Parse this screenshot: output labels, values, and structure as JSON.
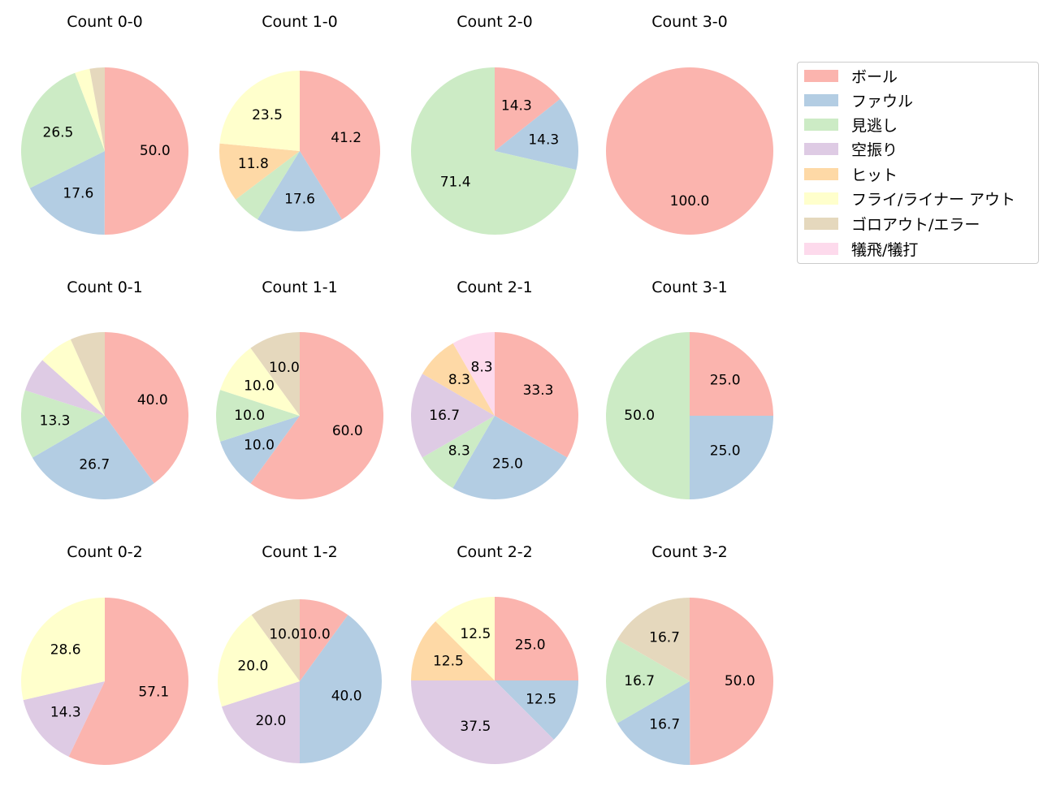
{
  "legend": {
    "items": [
      {
        "label": "ボール",
        "color": "#fbb4ae"
      },
      {
        "label": "ファウル",
        "color": "#b3cde3"
      },
      {
        "label": "見逃し",
        "color": "#ccebc5"
      },
      {
        "label": "空振り",
        "color": "#decbe4"
      },
      {
        "label": "ヒット",
        "color": "#fed9a6"
      },
      {
        "label": "フライ/ライナー アウト",
        "color": "#ffffcc"
      },
      {
        "label": "ゴロアウト/エラー",
        "color": "#e5d8bd"
      },
      {
        "label": "犠飛/犠打",
        "color": "#fddaec"
      }
    ]
  },
  "chart_data": [
    {
      "type": "pie",
      "title": "Count 0-0",
      "categories": [
        "ボール",
        "ファウル",
        "見逃し",
        "フライ/ライナー アウト",
        "ゴロアウト/エラー"
      ],
      "values": [
        50.0,
        17.6,
        26.5,
        2.9,
        2.9
      ],
      "labels": [
        "50.0",
        "17.6",
        "26.5",
        "",
        ""
      ]
    },
    {
      "type": "pie",
      "title": "Count 1-0",
      "categories": [
        "ボール",
        "ファウル",
        "見逃し",
        "ヒット",
        "フライ/ライナー アウト"
      ],
      "values": [
        41.2,
        17.6,
        5.9,
        11.8,
        23.5
      ],
      "labels": [
        "41.2",
        "17.6",
        "",
        "11.8",
        "23.5"
      ]
    },
    {
      "type": "pie",
      "title": "Count 2-0",
      "categories": [
        "ボール",
        "ファウル",
        "見逃し"
      ],
      "values": [
        14.3,
        14.3,
        71.4
      ],
      "labels": [
        "14.3",
        "14.3",
        "71.4"
      ]
    },
    {
      "type": "pie",
      "title": "Count 3-0",
      "categories": [
        "ボール"
      ],
      "values": [
        100.0
      ],
      "labels": [
        "100.0"
      ]
    },
    {
      "type": "pie",
      "title": "Count 0-1",
      "categories": [
        "ボール",
        "ファウル",
        "見逃し",
        "空振り",
        "フライ/ライナー アウト",
        "ゴロアウト/エラー"
      ],
      "values": [
        40.0,
        26.7,
        13.3,
        6.7,
        6.7,
        6.7
      ],
      "labels": [
        "40.0",
        "26.7",
        "13.3",
        "",
        "",
        ""
      ]
    },
    {
      "type": "pie",
      "title": "Count 1-1",
      "categories": [
        "ボール",
        "ファウル",
        "見逃し",
        "フライ/ライナー アウト",
        "ゴロアウト/エラー"
      ],
      "values": [
        60.0,
        10.0,
        10.0,
        10.0,
        10.0
      ],
      "labels": [
        "60.0",
        "10.0",
        "10.0",
        "10.0",
        "10.0"
      ]
    },
    {
      "type": "pie",
      "title": "Count 2-1",
      "categories": [
        "ボール",
        "ファウル",
        "見逃し",
        "空振り",
        "ヒット",
        "犠飛/犠打"
      ],
      "values": [
        33.3,
        25.0,
        8.3,
        16.7,
        8.3,
        8.3
      ],
      "labels": [
        "33.3",
        "25.0",
        "8.3",
        "16.7",
        "8.3",
        "8.3"
      ]
    },
    {
      "type": "pie",
      "title": "Count 3-1",
      "categories": [
        "ボール",
        "ファウル",
        "見逃し"
      ],
      "values": [
        25.0,
        25.0,
        50.0
      ],
      "labels": [
        "25.0",
        "25.0",
        "50.0"
      ]
    },
    {
      "type": "pie",
      "title": "Count 0-2",
      "categories": [
        "ボール",
        "空振り",
        "フライ/ライナー アウト"
      ],
      "values": [
        57.1,
        14.3,
        28.6
      ],
      "labels": [
        "57.1",
        "14.3",
        "28.6"
      ]
    },
    {
      "type": "pie",
      "title": "Count 1-2",
      "categories": [
        "ボール",
        "ファウル",
        "空振り",
        "フライ/ライナー アウト",
        "ゴロアウト/エラー"
      ],
      "values": [
        10.0,
        40.0,
        20.0,
        20.0,
        10.0
      ],
      "labels": [
        "10.0",
        "40.0",
        "20.0",
        "20.0",
        "10.0"
      ]
    },
    {
      "type": "pie",
      "title": "Count 2-2",
      "categories": [
        "ボール",
        "ファウル",
        "空振り",
        "ヒット",
        "フライ/ライナー アウト"
      ],
      "values": [
        25.0,
        12.5,
        37.5,
        12.5,
        12.5
      ],
      "labels": [
        "25.0",
        "12.5",
        "37.5",
        "12.5",
        "12.5"
      ]
    },
    {
      "type": "pie",
      "title": "Count 3-2",
      "categories": [
        "ボール",
        "ファウル",
        "見逃し",
        "ゴロアウト/エラー"
      ],
      "values": [
        50.0,
        16.7,
        16.7,
        16.7
      ],
      "labels": [
        "50.0",
        "16.7",
        "16.7",
        "16.7"
      ]
    }
  ]
}
